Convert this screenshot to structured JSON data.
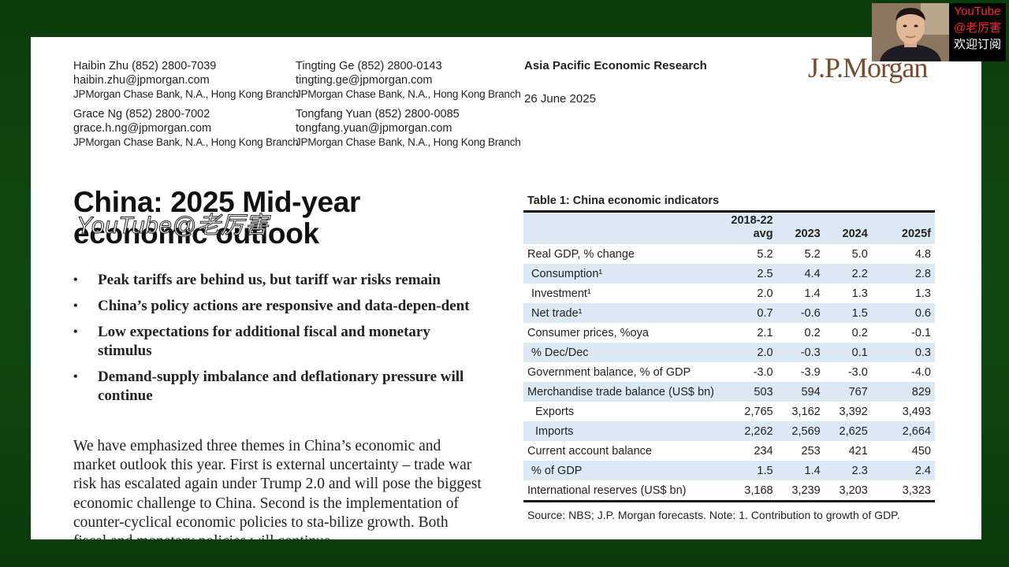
{
  "authors": [
    {
      "name": "Haibin Zhu  (852) 2800-7039",
      "email": "haibin.zhu@jpmorgan.com",
      "bank": "JPMorgan Chase Bank, N.A., Hong Kong Branch"
    },
    {
      "name": "Tingting Ge  (852) 2800-0143",
      "email": "tingting.ge@jpmorgan.com",
      "bank": "JPMorgan Chase Bank, N.A., Hong Kong Branch"
    },
    {
      "name": "Grace Ng  (852) 2800-7002",
      "email": "grace.h.ng@jpmorgan.com",
      "bank": "JPMorgan Chase Bank, N.A., Hong Kong Branch"
    },
    {
      "name": "Tongfang Yuan  (852) 2800-0085",
      "email": "tongfang.yuan@jpmorgan.com",
      "bank": "JPMorgan Chase Bank, N.A., Hong Kong Branch"
    }
  ],
  "header": {
    "research": "Asia Pacific Economic Research",
    "date": "26 June 2025",
    "logo": "J.P.Morgan"
  },
  "title": {
    "line1": "China: 2025 Mid-year",
    "line2": "economic outlook"
  },
  "bullets": [
    "Peak tariffs are behind us, but tariff war risks remain",
    "China’s policy actions are responsive and data-depen-dent",
    "Low expectations for additional fiscal and monetary stimulus",
    "Demand-supply imbalance and deflationary pressure will continue"
  ],
  "bullet_glyph": "•",
  "body": "We have emphasized three themes in China’s economic and market outlook this year. First is external uncertainty – trade war risk has escalated again under Trump 2.0 and will pose the biggest economic challenge to China. Second is the implementation of counter-cyclical economic policies to sta-bilize growth. Both fiscal and monetary policies will continue",
  "table": {
    "title": "Table 1: China economic indicators",
    "headers": [
      "",
      "2018-22 avg",
      "2023",
      "2024",
      "2025f"
    ],
    "rows": [
      {
        "label": "Real GDP, % change",
        "values": [
          "5.2",
          "5.2",
          "5.0",
          "4.8"
        ],
        "indent": 0
      },
      {
        "label": "Consumption¹",
        "values": [
          "2.5",
          "4.4",
          "2.2",
          "2.8"
        ],
        "indent": 1
      },
      {
        "label": "Investment¹",
        "values": [
          "2.0",
          "1.4",
          "1.3",
          "1.3"
        ],
        "indent": 1
      },
      {
        "label": "Net trade¹",
        "values": [
          "0.7",
          "-0.6",
          "1.5",
          "0.6"
        ],
        "indent": 1
      },
      {
        "label": "Consumer prices, %oya",
        "values": [
          "2.1",
          "0.2",
          "0.2",
          "-0.1"
        ],
        "indent": 0
      },
      {
        "label": "% Dec/Dec",
        "values": [
          "2.0",
          "-0.3",
          "0.1",
          "0.3"
        ],
        "indent": 1
      },
      {
        "label": "Government balance, % of GDP",
        "values": [
          "-3.0",
          "-3.9",
          "-3.0",
          "-4.0"
        ],
        "indent": 0
      },
      {
        "label": "Merchandise trade balance (US$ bn)",
        "values": [
          "503",
          "594",
          "767",
          "829"
        ],
        "indent": 0
      },
      {
        "label": "Exports",
        "values": [
          "2,765",
          "3,162",
          "3,392",
          "3,493"
        ],
        "indent": 2
      },
      {
        "label": "Imports",
        "values": [
          "2,262",
          "2,569",
          "2,625",
          "2,664"
        ],
        "indent": 2
      },
      {
        "label": "Current account balance",
        "values": [
          "234",
          "253",
          "421",
          "450"
        ],
        "indent": 0
      },
      {
        "label": "% of GDP",
        "values": [
          "1.5",
          "1.4",
          "2.3",
          "2.4"
        ],
        "indent": 1
      },
      {
        "label": "International reserves (US$ bn)",
        "values": [
          "3,168",
          "3,239",
          "3,203",
          "3,323"
        ],
        "indent": 0
      }
    ],
    "source": "Source: NBS; J.P. Morgan forecasts. Note: 1. Contribution to growth of GDP."
  },
  "overlay": {
    "watermark": "YouTube@老厉害",
    "channel_line1": "YouTube",
    "channel_line2": "@老厉害",
    "channel_line3": "欢迎订阅"
  }
}
